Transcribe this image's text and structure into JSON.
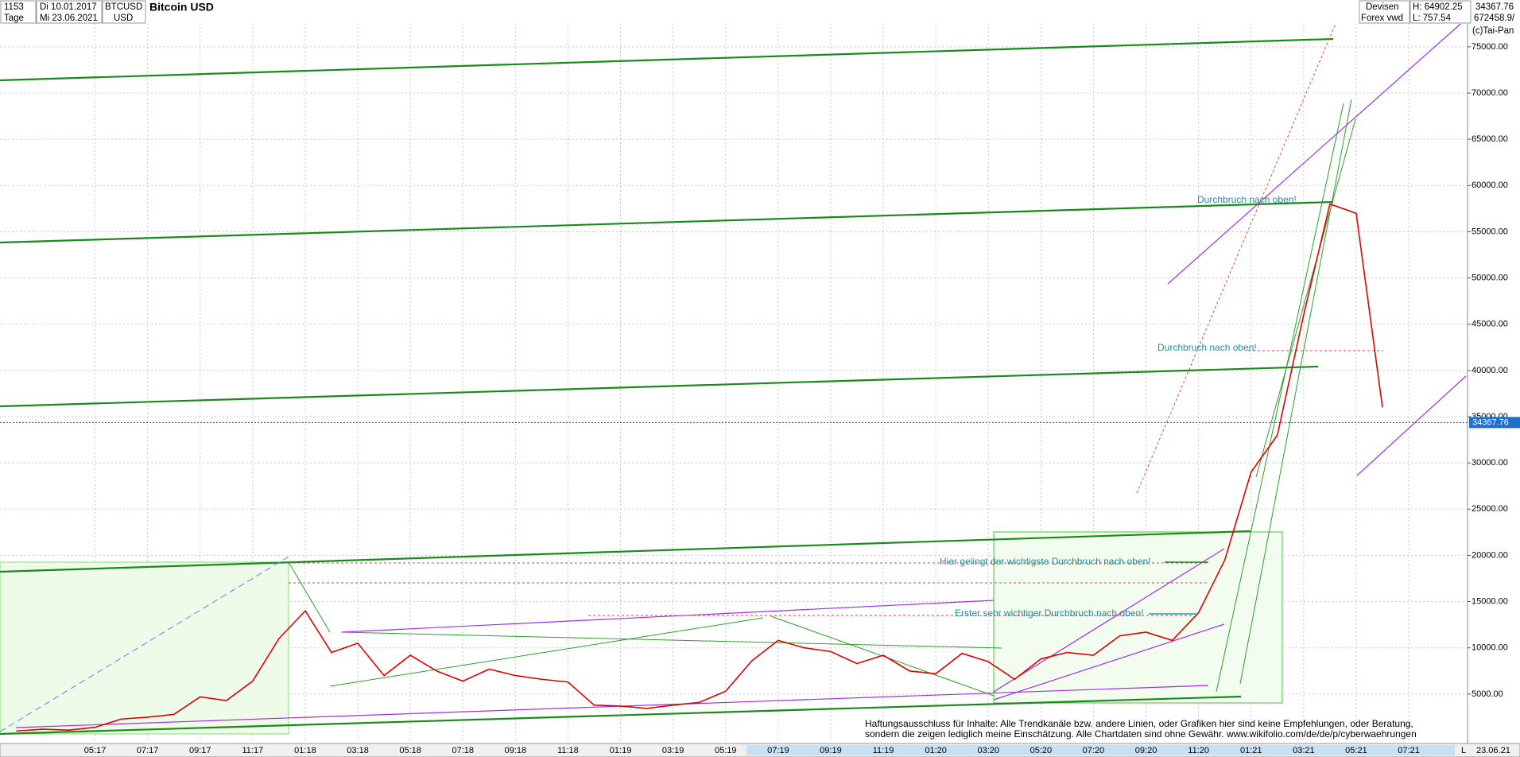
{
  "header": {
    "id": "1153",
    "start": "Di 10.01.2017",
    "interval": "Tage",
    "end": "Mi 23.06.2021",
    "symbol": "BTCUSD",
    "currency": "USD",
    "name": "Bitcoin USD",
    "market": "Devisen",
    "source": "Forex vwd",
    "high": "H: 64902.25",
    "low": "L: 757.54",
    "close": "34367.76",
    "volume": "672458.9/",
    "copyright": "(c)Tai-Pan"
  },
  "chart_data": {
    "type": "line",
    "categories": [
      null,
      null,
      null,
      "05:17",
      null,
      "07:17",
      null,
      "09:17",
      null,
      "11:17",
      null,
      "01:18",
      null,
      "03:18",
      null,
      "05:18",
      null,
      "07:18",
      null,
      "09:18",
      null,
      "11:18",
      null,
      "01:19",
      null,
      "03:19",
      null,
      "05:19",
      null,
      "07:19",
      null,
      "09:19",
      null,
      "11:19",
      null,
      "01:20",
      null,
      "03:20",
      null,
      "05:20",
      null,
      "07:20",
      null,
      "09:20",
      null,
      "11:20",
      null,
      "01:21",
      null,
      "03:21",
      null,
      "05:21",
      null,
      "07:21"
    ],
    "series": [
      {
        "name": "Bitcoin USD",
        "color": "#e00000",
        "values": [
          1000,
          1200,
          1100,
          1400,
          2300,
          2500,
          2800,
          4700,
          4300,
          6400,
          11000,
          14000,
          9500,
          10500,
          7000,
          9200,
          7500,
          6400,
          7700,
          7000,
          6600,
          6300,
          3800,
          3700,
          3450,
          3800,
          4100,
          5300,
          8600,
          10800,
          10000,
          9600,
          8300,
          9200,
          7500,
          7200,
          9400,
          8500,
          6600,
          8800,
          9500,
          9200,
          11300,
          11700,
          10800,
          13800,
          19500,
          29000,
          33000,
          46000,
          58000,
          57000,
          36000,
          null
        ]
      }
    ],
    "last_price": 34367.76,
    "ylim": [
      0,
      78000
    ],
    "yticks": [
      {
        "value": 5000,
        "label": "5000.00"
      },
      {
        "value": 10000,
        "label": "10000.00"
      },
      {
        "value": 15000,
        "label": "15000.00"
      },
      {
        "value": 20000,
        "label": "20000.00"
      },
      {
        "value": 25000,
        "label": "25000.00"
      },
      {
        "value": 30000,
        "label": "30000.00"
      },
      {
        "value": 35000,
        "label": "35000.00"
      },
      {
        "value": 40000,
        "label": "40000.00"
      },
      {
        "value": 45000,
        "label": "45000.00"
      },
      {
        "value": 50000,
        "label": "50000.00"
      },
      {
        "value": 55000,
        "label": "55000.00"
      },
      {
        "value": 60000,
        "label": "60000.00"
      },
      {
        "value": 65000,
        "label": "65000.00"
      },
      {
        "value": 70000,
        "label": "70000.00"
      },
      {
        "value": 75000,
        "label": "75000.00"
      }
    ],
    "grid": true,
    "annotations": [
      "Durchbruch nach oben!",
      "Durchbruch nach oben!",
      "Hier gelingt der wichtigste Durchbruch nach oben!",
      "Erster sehr wichtiger Durchbruch nach oben!"
    ],
    "disclaimer": [
      "Haftungsausschluss für Inhalte: Alle Trendkanäle bzw. andere Linien, oder Grafiken hier sind keine Empfehlungen, oder Beratung,",
      "sondern die zeigen lediglich meine  Einschätzung. Alle Chartdaten sind ohne Gewähr.  www.wikifolio.com/de/de/p/cyberwaehrungen"
    ],
    "end_date": "23.06.21",
    "scale_mode": "L"
  }
}
